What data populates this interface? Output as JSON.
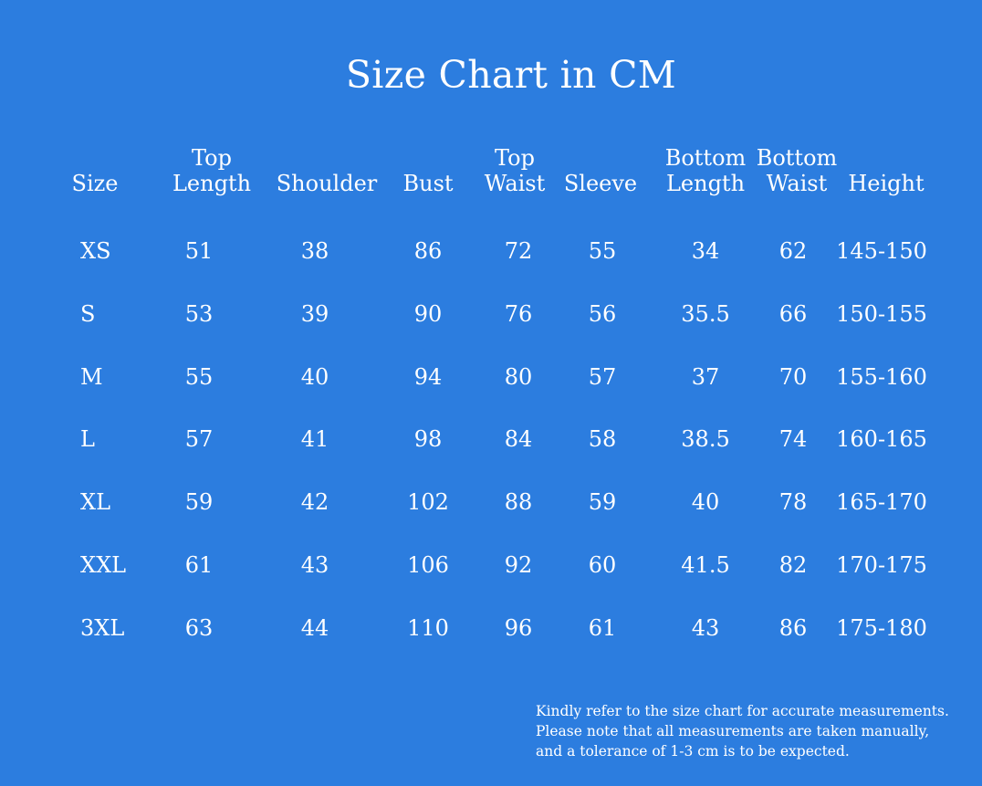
{
  "title": "Size Chart in CM",
  "headers": [
    {
      "key": "size",
      "l1": "",
      "l2": "Size"
    },
    {
      "key": "top_length",
      "l1": "Top",
      "l2": "Length"
    },
    {
      "key": "shoulder",
      "l1": "",
      "l2": "Shoulder"
    },
    {
      "key": "bust",
      "l1": "",
      "l2": "Bust"
    },
    {
      "key": "top_waist",
      "l1": "Top",
      "l2": "Waist"
    },
    {
      "key": "sleeve",
      "l1": "",
      "l2": "Sleeve"
    },
    {
      "key": "bottom_length",
      "l1": "Bottom",
      "l2": "Length"
    },
    {
      "key": "bottom_waist",
      "l1": "Bottom",
      "l2": "Waist"
    },
    {
      "key": "height",
      "l1": "",
      "l2": "Height"
    }
  ],
  "rows": [
    [
      "XS",
      "51",
      "38",
      "86",
      "72",
      "55",
      "34",
      "62",
      "145-150"
    ],
    [
      "S",
      "53",
      "39",
      "90",
      "76",
      "56",
      "35.5",
      "66",
      "150-155"
    ],
    [
      "M",
      "55",
      "40",
      "94",
      "80",
      "57",
      "37",
      "70",
      "155-160"
    ],
    [
      "L",
      "57",
      "41",
      "98",
      "84",
      "58",
      "38.5",
      "74",
      "160-165"
    ],
    [
      "XL",
      "59",
      "42",
      "102",
      "88",
      "59",
      "40",
      "78",
      "165-170"
    ],
    [
      "XXL",
      "61",
      "43",
      "106",
      "92",
      "60",
      "41.5",
      "82",
      "170-175"
    ],
    [
      "3XL",
      "63",
      "44",
      "110",
      "96",
      "61",
      "43",
      "86",
      "175-180"
    ]
  ],
  "note": [
    "Kindly refer to the size chart for accurate measurements.",
    "Please note that all measurements are taken manually,",
    "and a tolerance of 1-3 cm is to be expected."
  ]
}
